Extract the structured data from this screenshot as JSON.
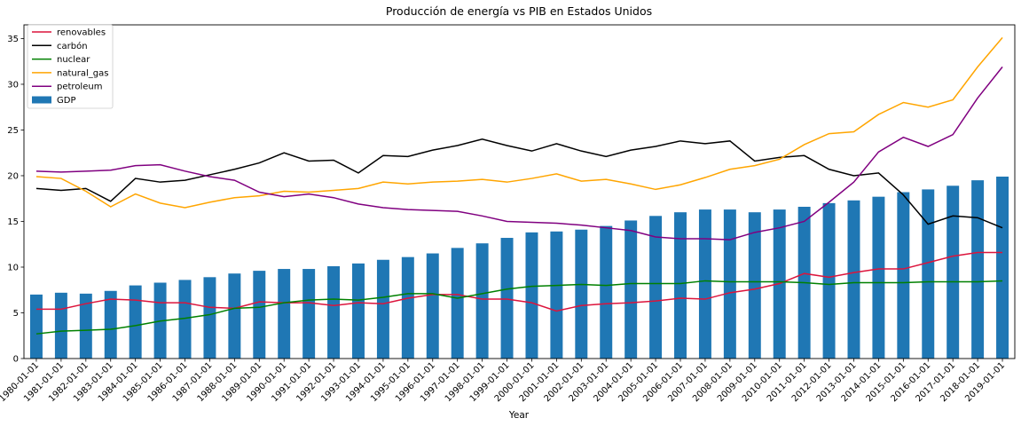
{
  "chart_data": {
    "type": "bar+line",
    "title": "Producción de energía vs PIB en Estados Unidos",
    "xlabel": "Year",
    "ylabel": "",
    "ylim": [
      0,
      36.5
    ],
    "yticks": [
      0,
      5,
      10,
      15,
      20,
      25,
      30,
      35
    ],
    "grid": false,
    "legend_position": "top-left",
    "categories": [
      "1980-01-01",
      "1981-01-01",
      "1982-01-01",
      "1983-01-01",
      "1984-01-01",
      "1985-01-01",
      "1986-01-01",
      "1987-01-01",
      "1988-01-01",
      "1989-01-01",
      "1990-01-01",
      "1991-01-01",
      "1992-01-01",
      "1993-01-01",
      "1994-01-01",
      "1995-01-01",
      "1996-01-01",
      "1997-01-01",
      "1998-01-01",
      "1999-01-01",
      "2000-01-01",
      "2001-01-01",
      "2002-01-01",
      "2003-01-01",
      "2004-01-01",
      "2005-01-01",
      "2006-01-01",
      "2007-01-01",
      "2008-01-01",
      "2009-01-01",
      "2010-01-01",
      "2011-01-01",
      "2012-01-01",
      "2013-01-01",
      "2014-01-01",
      "2015-01-01",
      "2016-01-01",
      "2017-01-01",
      "2018-01-01",
      "2019-01-01"
    ],
    "bars": {
      "name": "GDP",
      "color": "#1f77b4",
      "values": [
        7.0,
        7.2,
        7.1,
        7.4,
        8.0,
        8.3,
        8.6,
        8.9,
        9.3,
        9.6,
        9.8,
        9.8,
        10.1,
        10.4,
        10.8,
        11.1,
        11.5,
        12.1,
        12.6,
        13.2,
        13.8,
        13.9,
        14.1,
        14.5,
        15.1,
        15.6,
        16.0,
        16.3,
        16.3,
        16.0,
        16.3,
        16.6,
        17.0,
        17.3,
        17.7,
        18.2,
        18.5,
        18.9,
        19.5,
        19.9
      ]
    },
    "series": [
      {
        "name": "renovables",
        "color": "#dc143c",
        "values": [
          5.4,
          5.4,
          6.0,
          6.5,
          6.4,
          6.1,
          6.1,
          5.6,
          5.5,
          6.2,
          6.1,
          6.1,
          5.8,
          6.1,
          6.0,
          6.6,
          7.0,
          7.0,
          6.5,
          6.5,
          6.1,
          5.2,
          5.8,
          6.0,
          6.1,
          6.3,
          6.6,
          6.5,
          7.2,
          7.6,
          8.2,
          9.3,
          8.9,
          9.4,
          9.8,
          9.8,
          10.5,
          11.2,
          11.6,
          11.6
        ]
      },
      {
        "name": "carbón",
        "color": "#000000",
        "values": [
          18.6,
          18.4,
          18.6,
          17.2,
          19.7,
          19.3,
          19.5,
          20.1,
          20.7,
          21.4,
          22.5,
          21.6,
          21.7,
          20.3,
          22.2,
          22.1,
          22.8,
          23.3,
          24.0,
          23.3,
          22.7,
          23.5,
          22.7,
          22.1,
          22.8,
          23.2,
          23.8,
          23.5,
          23.8,
          21.6,
          22.0,
          22.2,
          20.7,
          20.0,
          20.3,
          17.9,
          14.7,
          15.6,
          15.4,
          14.3
        ]
      },
      {
        "name": "nuclear",
        "color": "#008000",
        "values": [
          2.7,
          3.0,
          3.1,
          3.2,
          3.6,
          4.1,
          4.4,
          4.8,
          5.5,
          5.6,
          6.1,
          6.4,
          6.5,
          6.4,
          6.7,
          7.1,
          7.1,
          6.6,
          7.1,
          7.6,
          7.9,
          8.0,
          8.1,
          8.0,
          8.2,
          8.2,
          8.2,
          8.5,
          8.4,
          8.4,
          8.4,
          8.3,
          8.1,
          8.3,
          8.3,
          8.3,
          8.4,
          8.4,
          8.4,
          8.5
        ]
      },
      {
        "name": "natural_gas",
        "color": "#ffa500",
        "values": [
          19.9,
          19.7,
          18.3,
          16.6,
          18.0,
          17.0,
          16.5,
          17.1,
          17.6,
          17.8,
          18.3,
          18.2,
          18.4,
          18.6,
          19.3,
          19.1,
          19.3,
          19.4,
          19.6,
          19.3,
          19.7,
          20.2,
          19.4,
          19.6,
          19.1,
          18.5,
          19.0,
          19.8,
          20.7,
          21.1,
          21.8,
          23.4,
          24.6,
          24.8,
          26.7,
          28.0,
          27.5,
          28.3,
          31.9,
          35.1
        ]
      },
      {
        "name": "petroleum",
        "color": "#800080",
        "values": [
          20.5,
          20.4,
          20.5,
          20.6,
          21.1,
          21.2,
          20.5,
          19.9,
          19.5,
          18.2,
          17.7,
          18.0,
          17.6,
          16.9,
          16.5,
          16.3,
          16.2,
          16.1,
          15.6,
          15.0,
          14.9,
          14.8,
          14.6,
          14.3,
          14.0,
          13.3,
          13.1,
          13.1,
          13.0,
          13.8,
          14.3,
          15.0,
          17.1,
          19.3,
          22.6,
          24.2,
          23.2,
          24.5,
          28.5,
          31.9
        ]
      }
    ]
  }
}
